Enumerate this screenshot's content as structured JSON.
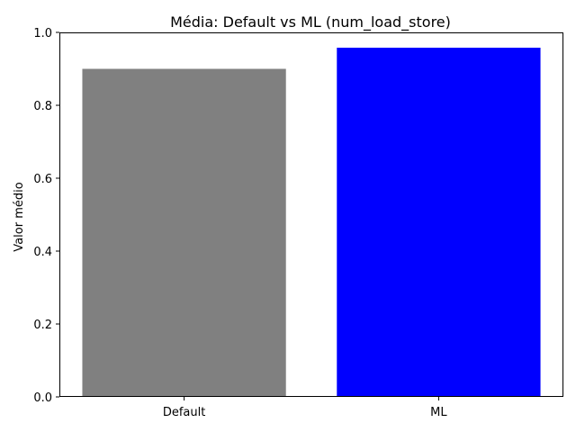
{
  "chart_data": {
    "type": "bar",
    "title": "Média: Default vs ML (num_load_store)",
    "xlabel": "",
    "ylabel": "Valor médio",
    "categories": [
      "Default",
      "ML"
    ],
    "values": [
      0.9,
      0.958
    ],
    "colors": [
      "#808080",
      "#0000ff"
    ],
    "ylim": [
      0,
      1.0
    ],
    "yticks": [
      0.0,
      0.2,
      0.4,
      0.6,
      0.8,
      1.0
    ],
    "ytick_labels": [
      "0.0",
      "0.2",
      "0.4",
      "0.6",
      "0.8",
      "1.0"
    ],
    "grid": false,
    "legend": "none"
  }
}
